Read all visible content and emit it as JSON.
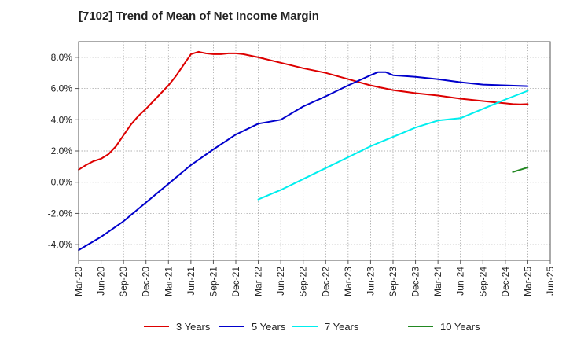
{
  "title": "[7102]  Trend of Mean of Net Income Margin",
  "chart_data": {
    "type": "line",
    "title": "[7102]  Trend of Mean of Net Income Margin",
    "xlabel": "",
    "ylabel": "",
    "x_tick_labels": [
      "Mar-20",
      "Jun-20",
      "Sep-20",
      "Dec-20",
      "Mar-21",
      "Jun-21",
      "Sep-21",
      "Dec-21",
      "Mar-22",
      "Jun-22",
      "Sep-22",
      "Dec-22",
      "Mar-23",
      "Jun-23",
      "Sep-23",
      "Dec-23",
      "Mar-24",
      "Jun-24",
      "Sep-24",
      "Dec-24",
      "Mar-25",
      "Jun-25"
    ],
    "y_tick_labels": [
      "8.0%",
      "6.0%",
      "4.0%",
      "2.0%",
      "0.0%",
      "-2.0%",
      "-4.0%"
    ],
    "y_ticks": [
      8,
      6,
      4,
      2,
      0,
      -2,
      -4
    ],
    "ylim": [
      -5,
      9
    ],
    "x_range": [
      "Mar-20",
      "Jun-25"
    ],
    "grid": "dotted",
    "legend_position": "bottom",
    "series": [
      {
        "name": "3 Years",
        "color": "#dd0000",
        "x": [
          "2020-03",
          "2020-04",
          "2020-05",
          "2020-06",
          "2020-07",
          "2020-08",
          "2020-09",
          "2020-10",
          "2020-11",
          "2020-12",
          "2021-01",
          "2021-02",
          "2021-03",
          "2021-04",
          "2021-05",
          "2021-06",
          "2021-07",
          "2021-08",
          "2021-09",
          "2021-10",
          "2021-11",
          "2021-12",
          "2022-01",
          "2022-02",
          "2022-03",
          "2022-06",
          "2022-09",
          "2022-12",
          "2023-03",
          "2023-06",
          "2023-09",
          "2023-12",
          "2024-03",
          "2024-06",
          "2024-09",
          "2024-12",
          "2025-01",
          "2025-02",
          "2025-03"
        ],
        "values": [
          0.8,
          1.1,
          1.35,
          1.5,
          1.8,
          2.3,
          3.0,
          3.7,
          4.25,
          4.7,
          5.2,
          5.7,
          6.2,
          6.8,
          7.5,
          8.2,
          8.35,
          8.25,
          8.2,
          8.2,
          8.25,
          8.25,
          8.2,
          8.1,
          8.0,
          7.65,
          7.3,
          7.0,
          6.6,
          6.2,
          5.9,
          5.7,
          5.55,
          5.35,
          5.2,
          5.05,
          5.0,
          4.98,
          5.0
        ]
      },
      {
        "name": "5 Years",
        "color": "#0000cc",
        "x": [
          "2020-03",
          "2020-06",
          "2020-09",
          "2020-12",
          "2021-03",
          "2021-06",
          "2021-09",
          "2021-12",
          "2022-03",
          "2022-06",
          "2022-09",
          "2022-12",
          "2023-03",
          "2023-06",
          "2023-07",
          "2023-08",
          "2023-09",
          "2023-12",
          "2024-03",
          "2024-06",
          "2024-09",
          "2024-12",
          "2025-03"
        ],
        "values": [
          -4.35,
          -3.5,
          -2.5,
          -1.3,
          -0.1,
          1.1,
          2.1,
          3.05,
          3.75,
          4.0,
          4.85,
          5.5,
          6.2,
          6.85,
          7.05,
          7.05,
          6.85,
          6.75,
          6.6,
          6.4,
          6.25,
          6.2,
          6.15
        ]
      },
      {
        "name": "7 Years",
        "color": "#00eeee",
        "x": [
          "2022-03",
          "2022-06",
          "2022-09",
          "2022-12",
          "2023-03",
          "2023-06",
          "2023-09",
          "2023-12",
          "2024-03",
          "2024-06",
          "2024-09",
          "2024-12",
          "2025-03"
        ],
        "values": [
          -1.1,
          -0.5,
          0.2,
          0.9,
          1.6,
          2.3,
          2.9,
          3.5,
          3.95,
          4.1,
          4.7,
          5.3,
          5.85
        ]
      },
      {
        "name": "10 Years",
        "color": "#228822",
        "x": [
          "2025-01",
          "2025-03"
        ],
        "values": [
          0.65,
          0.95
        ]
      }
    ]
  }
}
